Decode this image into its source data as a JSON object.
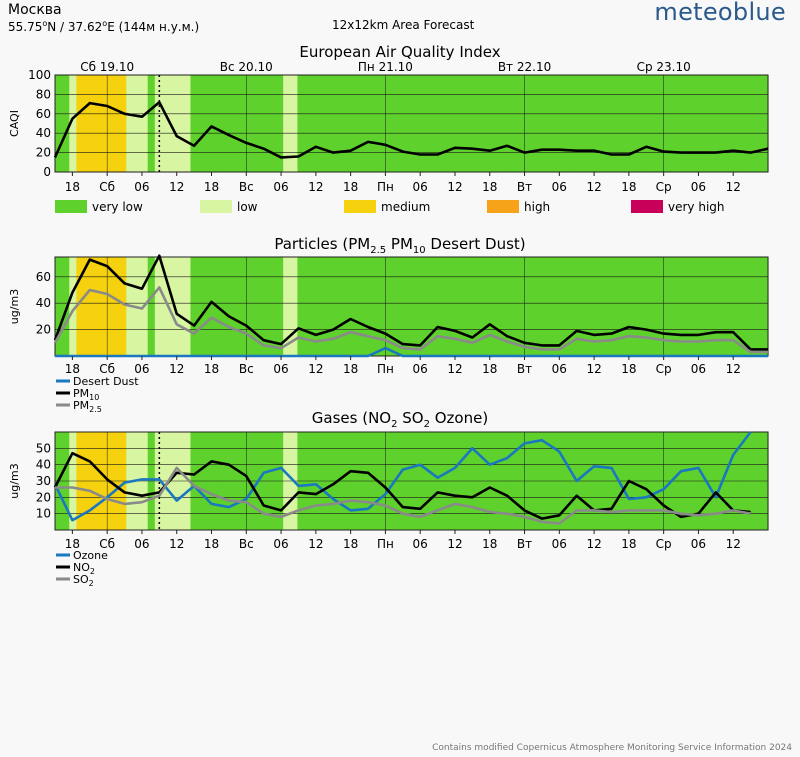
{
  "header": {
    "city": "Москва",
    "coords_prefix": "55.75",
    "coords_mid": "N / 37.62",
    "coords_suffix": "E (144м н.у.м.)",
    "area": "12x12km Area Forecast",
    "brand": "meteoblue"
  },
  "footer": "Contains modified Copernicus Atmosphere Monitoring Service Information 2024",
  "colors": {
    "very_low": "#5ed12c",
    "low": "#d8f5a2",
    "medium": "#f6d10e",
    "high": "#f7a31a",
    "very_high": "#c8005a",
    "dust": "#1a78c0",
    "pm10": "#000000",
    "pm25": "#8a8a8a",
    "ozone": "#1a78c0",
    "no2": "#000000",
    "so2": "#8a8a8a"
  },
  "time_axis": {
    "start_hour": 15,
    "hours_per_step": 3,
    "day_labels": [
      "Сб 19.10",
      "Вс 20.10",
      "Пн 21.10",
      "Вт 22.10",
      "Ср 23.10"
    ],
    "tick_labels": [
      "18",
      "Сб",
      "06",
      "12",
      "18",
      "Вс",
      "06",
      "12",
      "18",
      "Пн",
      "06",
      "12",
      "18",
      "Вт",
      "06",
      "12",
      "18",
      "Ср",
      "06",
      "12"
    ],
    "now_line_hour": 9
  },
  "aqi_bands": [
    "very low",
    "very low",
    "low",
    "medium",
    "medium",
    "medium",
    "medium",
    "medium",
    "medium",
    "medium",
    "low",
    "low",
    "low",
    "very low",
    "low",
    "low",
    "low",
    "low",
    "low",
    "very low",
    "very low",
    "very low",
    "very low",
    "very low",
    "very low",
    "very low",
    "very low",
    "very low",
    "very low",
    "very low",
    "very low",
    "very low",
    "low",
    "low",
    "very low",
    "very low",
    "very low",
    "very low",
    "very low",
    "very low",
    "very low",
    "very low",
    "very low",
    "very low",
    "very low",
    "very low",
    "very low",
    "very low",
    "very low",
    "very low",
    "very low",
    "very low",
    "very low",
    "very low",
    "very low",
    "very low",
    "very low",
    "very low",
    "very low",
    "very low",
    "very low",
    "very low",
    "very low",
    "very low",
    "very low",
    "very low",
    "very low",
    "very low",
    "very low",
    "very low",
    "very low",
    "very low",
    "very low",
    "very low",
    "very low",
    "very low",
    "very low",
    "very low",
    "very low",
    "very low",
    "very low",
    "very low",
    "very low",
    "very low",
    "very low",
    "very low",
    "very low",
    "very low",
    "very low",
    "very low",
    "very low",
    "very low",
    "very low",
    "very low",
    "very low",
    "very low",
    "very low",
    "very low",
    "very low",
    "very low"
  ],
  "chart_data": [
    {
      "type": "line",
      "title": "European Air Quality Index",
      "ylabel": "CAQI",
      "ylim": [
        0,
        100
      ],
      "yticks": [
        0,
        20,
        40,
        60,
        80,
        100
      ],
      "legend": [
        {
          "name": "very low",
          "color": "#5ed12c"
        },
        {
          "name": "low",
          "color": "#d8f5a2"
        },
        {
          "name": "medium",
          "color": "#f6d10e"
        },
        {
          "name": "high",
          "color": "#f7a31a"
        },
        {
          "name": "very high",
          "color": "#c8005a"
        }
      ],
      "series": [
        {
          "name": "CAQI",
          "values": [
            15,
            55,
            71,
            68,
            60,
            57,
            72,
            37,
            27,
            47,
            38,
            30,
            24,
            15,
            16,
            26,
            20,
            22,
            31,
            28,
            21,
            18,
            18,
            25,
            24,
            22,
            27,
            20,
            23,
            23,
            22,
            22,
            18,
            18,
            26,
            21,
            20,
            20,
            20,
            22,
            20,
            24
          ]
        }
      ]
    },
    {
      "type": "line",
      "title": "Particles (PM2.5 PM10 Desert Dust)",
      "title_parts": [
        "Particles (PM",
        "2.5",
        " PM",
        "10",
        " Desert Dust)"
      ],
      "ylabel": "ug/m3",
      "ylim": [
        0,
        75
      ],
      "yticks": [
        20,
        40,
        60
      ],
      "series": [
        {
          "name": "Desert Dust",
          "values": [
            0,
            0,
            0,
            0,
            0,
            0,
            0,
            0,
            0,
            0,
            0,
            0,
            0,
            0,
            0,
            0,
            0,
            0,
            0,
            6,
            0,
            0,
            0,
            0,
            0,
            0,
            0,
            0,
            0,
            0,
            0,
            0,
            0,
            0,
            0,
            0,
            0,
            0,
            0,
            0,
            0,
            0
          ]
        },
        {
          "name": "PM10",
          "values": [
            12,
            48,
            73,
            68,
            55,
            51,
            76,
            32,
            23,
            41,
            30,
            23,
            12,
            9,
            21,
            16,
            20,
            28,
            22,
            17,
            9,
            8,
            22,
            19,
            14,
            24,
            15,
            10,
            8,
            8,
            19,
            16,
            17,
            22,
            20,
            17,
            16,
            16,
            18,
            18,
            5,
            5
          ]
        },
        {
          "name": "PM2.5",
          "values": [
            10,
            34,
            50,
            47,
            39,
            36,
            52,
            24,
            17,
            29,
            22,
            17,
            8,
            6,
            14,
            11,
            13,
            18,
            15,
            12,
            6,
            5,
            15,
            13,
            10,
            16,
            11,
            7,
            5,
            5,
            13,
            11,
            12,
            15,
            14,
            12,
            11,
            11,
            12,
            12,
            3,
            3
          ]
        }
      ],
      "legend": [
        {
          "name": "Desert Dust",
          "label": "Desert Dust",
          "sub": "",
          "color": "#1a78c0"
        },
        {
          "name": "PM10",
          "label": "PM",
          "sub": "10",
          "color": "#000000"
        },
        {
          "name": "PM2.5",
          "label": "PM",
          "sub": "2.5",
          "color": "#8a8a8a"
        }
      ]
    },
    {
      "type": "line",
      "title": "Gases (NO2 SO2 Ozone)",
      "title_parts": [
        "Gases (NO",
        "2",
        " SO",
        "2",
        " Ozone)"
      ],
      "ylabel": "ug/m3",
      "ylim": [
        0,
        60
      ],
      "yticks": [
        10,
        20,
        30,
        40,
        50
      ],
      "series": [
        {
          "name": "Ozone",
          "values": [
            28,
            6,
            12,
            20,
            29,
            31,
            31,
            18,
            27,
            16,
            14,
            19,
            35,
            38,
            27,
            28,
            19,
            12,
            13,
            22,
            37,
            40,
            32,
            38,
            50,
            40,
            44,
            53,
            55,
            48,
            30,
            39,
            38,
            19,
            20,
            25,
            36,
            38,
            20,
            46,
            60
          ]
        },
        {
          "name": "NO2",
          "values": [
            26,
            47,
            42,
            31,
            23,
            21,
            23,
            35,
            34,
            42,
            40,
            33,
            15,
            12,
            23,
            22,
            28,
            36,
            35,
            26,
            14,
            13,
            23,
            21,
            20,
            26,
            21,
            12,
            7,
            9,
            21,
            12,
            13,
            30,
            25,
            15,
            8,
            10,
            23,
            12,
            11
          ]
        },
        {
          "name": "SO2",
          "values": [
            26,
            26,
            24,
            19,
            16,
            17,
            21,
            38,
            27,
            22,
            18,
            17,
            10,
            8,
            12,
            15,
            16,
            18,
            17,
            15,
            10,
            8,
            12,
            16,
            14,
            11,
            10,
            8,
            5,
            4,
            12,
            12,
            11,
            12,
            12,
            12,
            10,
            9,
            10,
            12,
            10
          ]
        }
      ],
      "legend": [
        {
          "name": "Ozone",
          "label": "Ozone",
          "sub": "",
          "color": "#1a78c0"
        },
        {
          "name": "NO2",
          "label": "NO",
          "sub": "2",
          "color": "#000000"
        },
        {
          "name": "SO2",
          "label": "SO",
          "sub": "2",
          "color": "#8a8a8a"
        }
      ]
    }
  ]
}
